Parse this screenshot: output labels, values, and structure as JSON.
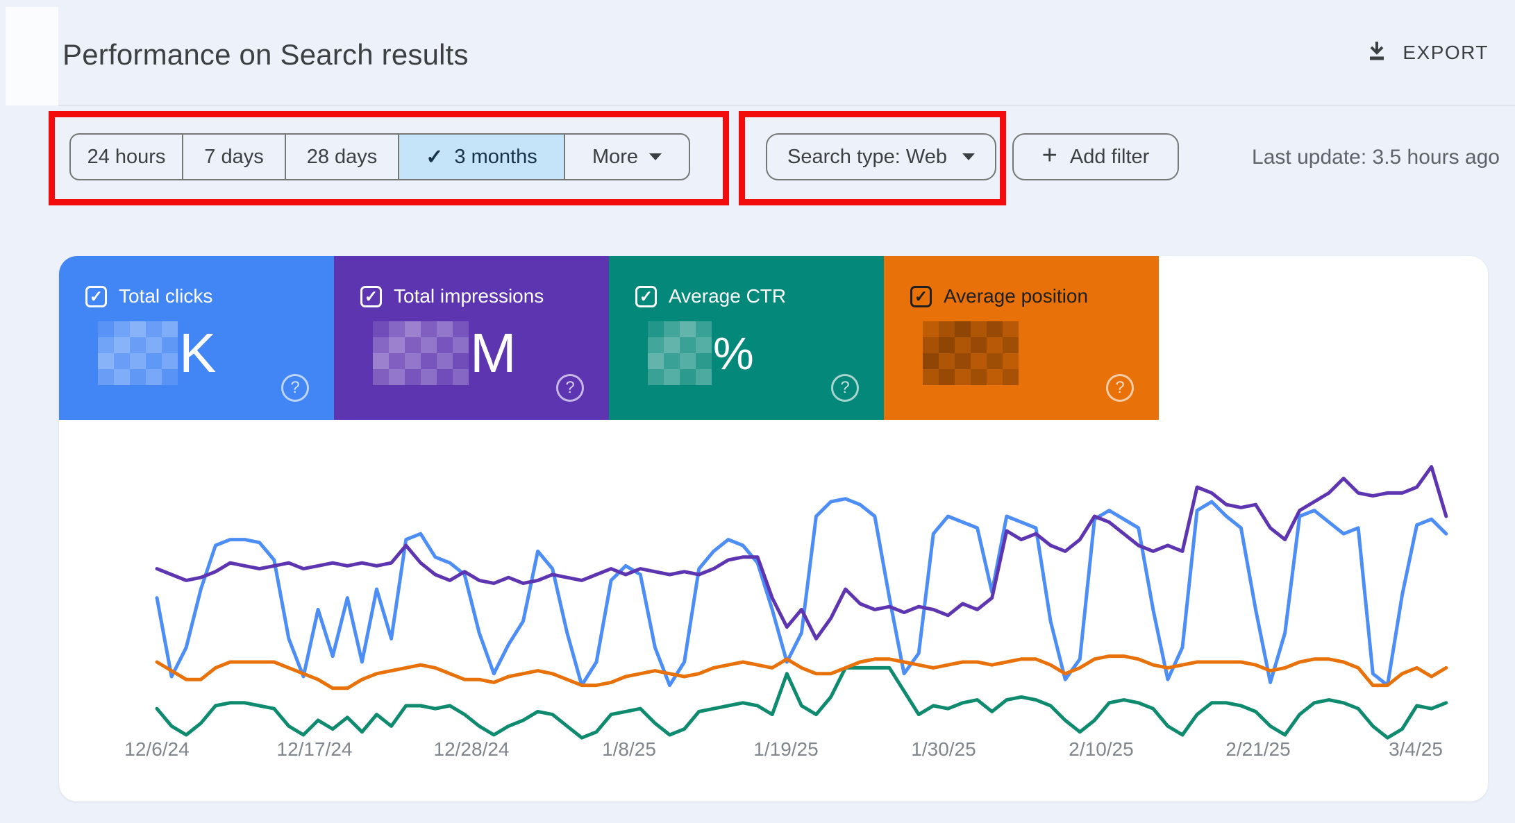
{
  "page": {
    "title": "Performance on Search results"
  },
  "export": {
    "label": "EXPORT"
  },
  "toolbar": {
    "date_range_chips": [
      {
        "label": "24 hours",
        "selected": false
      },
      {
        "label": "7 days",
        "selected": false
      },
      {
        "label": "28 days",
        "selected": false
      },
      {
        "label": "3 months",
        "selected": true
      },
      {
        "label": "More",
        "selected": false,
        "has_dropdown": true
      }
    ],
    "search_type": {
      "label": "Search type: Web"
    },
    "add_filter": {
      "label": "Add filter",
      "plus": "+"
    },
    "last_update": "Last update: 3.5 hours ago",
    "selected_check": "✓"
  },
  "annotations": {
    "highlight_color": "#f20c0c",
    "boxes": [
      "date-range-filter-group",
      "search-type-dropdown"
    ]
  },
  "metric_cards": [
    {
      "id": "clicks",
      "label": "Total clicks",
      "checked": true,
      "check": "✓",
      "value_redacted": true,
      "value_suffix": "K",
      "bg": "#4285f4",
      "text": "#ffffff",
      "help": "?"
    },
    {
      "id": "impressions",
      "label": "Total impressions",
      "checked": true,
      "check": "✓",
      "value_redacted": true,
      "value_suffix": "M",
      "bg": "#5e35b1",
      "text": "#ffffff",
      "help": "?"
    },
    {
      "id": "ctr",
      "label": "Average CTR",
      "checked": true,
      "check": "✓",
      "value_redacted": true,
      "value_suffix": "%",
      "bg": "#048879",
      "text": "#ffffff",
      "help": "?"
    },
    {
      "id": "position",
      "label": "Average position",
      "checked": true,
      "check": "✓",
      "value_redacted": true,
      "value_suffix": "",
      "bg": "#e8710a",
      "text": "#1f1f1f",
      "help": "?"
    }
  ],
  "chart_data": {
    "type": "line",
    "title": "",
    "xlabel": "",
    "ylabel": "",
    "grid": false,
    "legend_position": "none",
    "x_days": 89,
    "x_range": [
      "12/6/24",
      "3/4/25"
    ],
    "x_tick_labels": [
      "12/6/24",
      "12/17/24",
      "12/28/24",
      "1/8/25",
      "1/19/25",
      "1/30/25",
      "2/10/25",
      "2/21/25",
      "3/4/25"
    ],
    "y_axis": "hidden in UI; absolute values redacted, series encoded as normalized 0-100 estimates read from pixel positions",
    "series": [
      {
        "name": "Total clicks",
        "color": "#4d8df6",
        "values_norm": [
          52,
          25,
          35,
          55,
          70,
          72,
          72,
          71,
          65,
          38,
          25,
          48,
          32,
          52,
          30,
          55,
          38,
          72,
          74,
          66,
          64,
          60,
          40,
          26,
          36,
          44,
          68,
          62,
          40,
          22,
          30,
          58,
          63,
          60,
          35,
          22,
          30,
          62,
          68,
          72,
          70,
          64,
          48,
          30,
          40,
          80,
          85,
          86,
          84,
          80,
          52,
          26,
          33,
          74,
          80,
          78,
          76,
          54,
          80,
          78,
          76,
          44,
          24,
          31,
          79,
          82,
          79,
          76,
          48,
          24,
          35,
          82,
          85,
          80,
          76,
          48,
          23,
          40,
          80,
          82,
          78,
          74,
          76,
          26,
          22,
          53,
          77,
          79,
          74
        ]
      },
      {
        "name": "Total impressions",
        "color": "#5e35b1",
        "values_norm": [
          62,
          60,
          58,
          59,
          61,
          64,
          63,
          62,
          63,
          64,
          62,
          63,
          64,
          63,
          64,
          63,
          64,
          70,
          64,
          60,
          58,
          61,
          58,
          57,
          59,
          57,
          58,
          60,
          59,
          58,
          60,
          62,
          60,
          62,
          61,
          60,
          61,
          60,
          62,
          65,
          66,
          66,
          52,
          42,
          48,
          38,
          45,
          55,
          50,
          48,
          49,
          47,
          49,
          48,
          46,
          50,
          48,
          52,
          75,
          72,
          74,
          70,
          68,
          72,
          80,
          78,
          74,
          70,
          68,
          70,
          68,
          90,
          88,
          84,
          83,
          84,
          76,
          72,
          82,
          85,
          88,
          93,
          88,
          87,
          88,
          88,
          90,
          97,
          80
        ]
      },
      {
        "name": "Average CTR",
        "color": "#0e8a6e",
        "values_norm": [
          14,
          8,
          5,
          9,
          15,
          16,
          16,
          15,
          14,
          8,
          5,
          10,
          7,
          11,
          6,
          12,
          8,
          15,
          15,
          14,
          15,
          12,
          8,
          5,
          8,
          10,
          13,
          12,
          8,
          4,
          6,
          12,
          13,
          14,
          9,
          5,
          7,
          13,
          14,
          15,
          16,
          15,
          12,
          26,
          15,
          12,
          18,
          28,
          28,
          28,
          28,
          20,
          12,
          15,
          14,
          16,
          17,
          13,
          17,
          18,
          17,
          15,
          10,
          6,
          10,
          16,
          17,
          16,
          14,
          8,
          5,
          12,
          16,
          16,
          15,
          13,
          8,
          5,
          12,
          16,
          17,
          16,
          14,
          8,
          4,
          7,
          15,
          14,
          16
        ]
      },
      {
        "name": "Average position",
        "color": "#e8710a",
        "values_norm": [
          30,
          27,
          24,
          24,
          28,
          30,
          30,
          30,
          30,
          28,
          26,
          24,
          21,
          21,
          24,
          26,
          27,
          28,
          29,
          28,
          26,
          24,
          24,
          23,
          25,
          26,
          27,
          26,
          24,
          22,
          22,
          23,
          25,
          26,
          27,
          26,
          25,
          26,
          28,
          29,
          30,
          29,
          28,
          31,
          28,
          26,
          26,
          28,
          30,
          31,
          31,
          30,
          29,
          28,
          29,
          30,
          30,
          29,
          30,
          31,
          31,
          29,
          26,
          28,
          31,
          32,
          32,
          31,
          29,
          28,
          29,
          30,
          30,
          30,
          30,
          29,
          27,
          28,
          30,
          31,
          31,
          30,
          28,
          22,
          22,
          26,
          28,
          25,
          28
        ]
      }
    ]
  }
}
